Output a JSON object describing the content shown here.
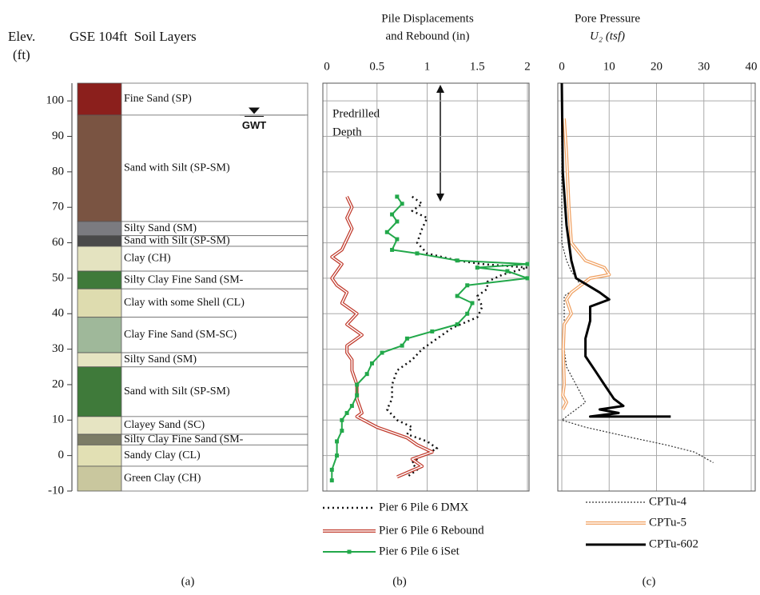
{
  "chart_data": [
    {
      "type": "strata",
      "title": "GSE 104ft  Soil Layers",
      "ylabel": [
        "Elev.",
        "(ft)"
      ],
      "caption": "(a)",
      "ylim": [
        -10,
        105
      ],
      "yticks": [
        100,
        90,
        80,
        70,
        60,
        50,
        40,
        30,
        20,
        10,
        0,
        -10
      ],
      "grid": true,
      "annotation": "GWT",
      "gwt": 97,
      "layers": [
        {
          "name": "Fine Sand (SP)",
          "top": 105,
          "bottom": 96,
          "color": "#8b1f1c"
        },
        {
          "name": "Sand with Silt (SP-SM)",
          "top": 96,
          "bottom": 66,
          "color": "#7a5442"
        },
        {
          "name": "Silty Sand (SM)",
          "top": 66,
          "bottom": 62,
          "color": "#7b7b80"
        },
        {
          "name": "Sand with Silt (SP-SM)",
          "top": 62,
          "bottom": 59,
          "color": "#4a4a4a"
        },
        {
          "name": "Clay (CH)",
          "top": 59,
          "bottom": 52,
          "color": "#e4e3c0"
        },
        {
          "name": "Silty Clay Fine Sand (SM-",
          "top": 52,
          "bottom": 47,
          "color": "#3f7a3a"
        },
        {
          "name": "Clay with some Shell (CL)",
          "top": 47,
          "bottom": 39,
          "color": "#dedcaf"
        },
        {
          "name": "Clay Fine Sand (SM-SC)",
          "top": 39,
          "bottom": 29,
          "color": "#9fb89a"
        },
        {
          "name": "Silty Sand (SM)",
          "top": 29,
          "bottom": 25,
          "color": "#e6e4c2"
        },
        {
          "name": "Sand with Silt (SP-SM)",
          "top": 25,
          "bottom": 11,
          "color": "#3f7a3a"
        },
        {
          "name": "Clayey Sand (SC)",
          "top": 11,
          "bottom": 6,
          "color": "#e6e4c2"
        },
        {
          "name": "Silty Clay Fine Sand (SM-",
          "top": 6,
          "bottom": 3,
          "color": "#7c7c66"
        },
        {
          "name": "Sandy Clay (CL)",
          "top": 3,
          "bottom": -3,
          "color": "#e2e0b4"
        },
        {
          "name": "Green Clay (CH)",
          "top": -3,
          "bottom": -10,
          "color": "#c9c79e"
        }
      ]
    },
    {
      "type": "line",
      "title": [
        "Pile Displacements",
        "and Rebound (in)"
      ],
      "caption": "(b)",
      "annotation": [
        "Predrilled",
        "Depth"
      ],
      "xlim": [
        0,
        2
      ],
      "xticks": [
        0,
        0.5,
        1,
        1.5,
        2
      ],
      "ylim": [
        -10,
        105
      ],
      "series": [
        {
          "name": "Pier 6 Pile 6 DMX",
          "color": "#111111",
          "style": "dotted",
          "x": [
            0.85,
            0.95,
            0.85,
            1.0,
            0.95,
            0.9,
            1.0,
            1.3,
            1.55,
            2.0,
            1.75,
            1.6,
            1.6,
            1.5,
            1.55,
            1.5,
            1.25,
            1.1,
            0.95,
            0.85,
            0.7,
            0.65,
            0.65,
            0.6,
            0.7,
            0.85,
            0.8,
            1.0,
            1.1,
            0.95,
            0.85,
            0.9,
            0.8
          ],
          "y": [
            73,
            71,
            69,
            67,
            64,
            60,
            57,
            55,
            54,
            53,
            51,
            49,
            47,
            45,
            42,
            39,
            36,
            33,
            30,
            27,
            24,
            20,
            16,
            13,
            10,
            8,
            6,
            4,
            2,
            0,
            -2,
            -4,
            -6
          ]
        },
        {
          "name": "Pier 6 Pile 6 Rebound",
          "color": "#c0392b",
          "style": "double",
          "x": [
            0.2,
            0.25,
            0.2,
            0.25,
            0.2,
            0.15,
            0.05,
            0.15,
            0.1,
            0.05,
            0.1,
            0.2,
            0.15,
            0.3,
            0.2,
            0.35,
            0.2,
            0.2,
            0.25,
            0.25,
            0.3,
            0.3,
            0.35,
            0.3,
            0.5,
            0.8,
            0.9,
            1.05,
            0.85,
            0.95,
            0.7
          ],
          "y": [
            73,
            70,
            67,
            64,
            61,
            58,
            56,
            54,
            52,
            50,
            48,
            46,
            43,
            40,
            37,
            34,
            31,
            29,
            27,
            24,
            20,
            16,
            12,
            11,
            8,
            5,
            3,
            1,
            -1,
            -3,
            -6
          ]
        },
        {
          "name": "Pier 6 Pile 6 iSet",
          "color": "#22a84a",
          "style": "marker",
          "x": [
            0.7,
            0.75,
            0.65,
            0.7,
            0.6,
            0.7,
            0.65,
            0.9,
            1.3,
            2.0,
            1.5,
            1.8,
            2.0,
            1.4,
            1.3,
            1.45,
            1.4,
            1.3,
            1.05,
            0.8,
            0.75,
            0.55,
            0.45,
            0.4,
            0.3,
            0.3,
            0.25,
            0.2,
            0.15,
            0.15,
            0.1,
            0.1,
            0.05,
            0.05
          ],
          "y": [
            73,
            71,
            68,
            66,
            63,
            61,
            58,
            57,
            55,
            54,
            53,
            52,
            50,
            48,
            45,
            43,
            40,
            37,
            35,
            33,
            31,
            29,
            26,
            23,
            20,
            17,
            14,
            12,
            10,
            7,
            4,
            0,
            -4,
            -7
          ]
        }
      ]
    },
    {
      "type": "line",
      "title": [
        "Pore Pressure",
        "U₂ (tsf)"
      ],
      "caption": "(c)",
      "xlim": [
        0,
        40
      ],
      "xticks": [
        0,
        10,
        20,
        30,
        40
      ],
      "ylim": [
        -10,
        105
      ],
      "series": [
        {
          "name": "CPTu-4",
          "color": "#333333",
          "style": "dotted",
          "x": [
            0,
            0,
            1,
            2,
            4,
            0.5,
            0.5,
            1,
            3,
            5,
            0,
            5,
            15,
            22,
            28,
            32
          ],
          "y": [
            105,
            60,
            55,
            52,
            48,
            45,
            30,
            25,
            20,
            15,
            10,
            8,
            5,
            3,
            1,
            -2
          ]
        },
        {
          "name": "CPTu-5",
          "color": "#f0a060",
          "style": "double",
          "x": [
            0.5,
            1,
            1.5,
            2,
            5,
            9,
            10,
            6,
            2,
            1,
            2,
            0.5,
            0.3,
            0.5,
            0.2,
            1,
            0.2
          ],
          "y": [
            95,
            85,
            70,
            60,
            55,
            53,
            51,
            50,
            46,
            44,
            40,
            37,
            30,
            20,
            17,
            15,
            13
          ]
        },
        {
          "name": "CPTu-602",
          "color": "#000000",
          "style": "solid",
          "x": [
            0,
            0.2,
            1,
            2,
            3,
            8,
            10,
            6,
            6,
            5,
            5,
            7,
            9,
            11,
            13,
            8,
            12,
            6,
            23
          ],
          "y": [
            105,
            80,
            65,
            55,
            50,
            46,
            44,
            42,
            38,
            33,
            28,
            24,
            20,
            16,
            14,
            13,
            12,
            11,
            11
          ]
        }
      ]
    }
  ]
}
